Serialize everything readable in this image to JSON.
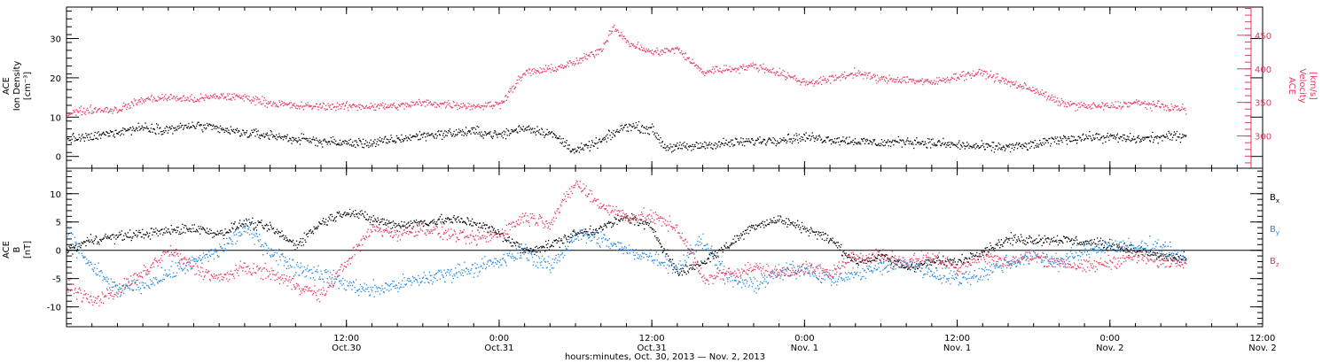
{
  "colors": {
    "axis": "#000000",
    "density": "#000000",
    "velocity": "#e8385e",
    "bx": "#000000",
    "by": "#1f87e5",
    "bz": "#e8385e"
  },
  "chart_data": [
    {
      "type": "scatter",
      "panel": "top",
      "xlim_hours": [
        -10,
        84
      ],
      "xlabel": "hours:minutes, Oct. 30, 2013 — Nov.  2, 2013",
      "left_axis": {
        "title": [
          "ACE",
          "Ion Density",
          "[cm⁻³]"
        ],
        "ylim": [
          -3,
          38
        ],
        "ticks": [
          0,
          10,
          20,
          30
        ],
        "tick_labels": [
          "0",
          "10",
          "20",
          "30"
        ]
      },
      "right_axis": {
        "title": [
          "ACE",
          "Velocity",
          "[km/s]"
        ],
        "ylim": [
          252,
          492
        ],
        "ticks": [
          300,
          350,
          400,
          450
        ],
        "tick_labels": [
          "300",
          "350",
          "400",
          "450"
        ]
      },
      "series": [
        {
          "key": "density",
          "axis": "left",
          "x": [
            -10,
            -8,
            -6,
            -4,
            -2,
            0,
            2,
            4,
            6,
            8,
            10,
            12,
            14,
            16,
            18,
            20,
            22,
            24,
            26,
            28,
            30,
            32,
            34,
            36,
            37,
            38,
            39,
            40,
            42,
            44,
            46,
            48,
            50,
            52,
            54,
            56,
            58,
            60,
            62,
            64,
            66,
            68,
            70,
            72,
            74,
            76,
            78
          ],
          "y": [
            4.5,
            5,
            6.5,
            7.5,
            7,
            8,
            7,
            6,
            5.5,
            4.5,
            4,
            3.5,
            3.5,
            4.5,
            5.5,
            6,
            6.5,
            5.5,
            7.5,
            6,
            1.5,
            4,
            8,
            7,
            2.5,
            2.5,
            2.5,
            3,
            3.5,
            4,
            4.5,
            5,
            4.5,
            4,
            3.5,
            4,
            3.5,
            3,
            2.5,
            2.5,
            3,
            4.5,
            5,
            5,
            4.5,
            5,
            5.5
          ]
        },
        {
          "key": "velocity",
          "axis": "right",
          "x": [
            -10,
            -8,
            -6,
            -4,
            -2,
            0,
            2,
            4,
            6,
            8,
            10,
            12,
            14,
            16,
            18,
            20,
            22,
            24,
            26,
            28,
            30,
            32,
            33,
            34,
            36,
            38,
            40,
            41,
            42,
            44,
            46,
            48,
            50,
            52,
            54,
            56,
            58,
            60,
            62,
            64,
            66,
            68,
            70,
            72,
            74,
            76,
            78
          ],
          "y": [
            335,
            340,
            340,
            355,
            358,
            355,
            360,
            358,
            350,
            345,
            345,
            345,
            345,
            345,
            350,
            348,
            345,
            348,
            395,
            400,
            410,
            430,
            465,
            440,
            425,
            430,
            395,
            400,
            400,
            405,
            395,
            380,
            385,
            395,
            385,
            385,
            380,
            390,
            395,
            380,
            370,
            350,
            345,
            345,
            350,
            345,
            340
          ]
        }
      ]
    },
    {
      "type": "scatter",
      "panel": "bottom",
      "xlim_hours": [
        -10,
        84
      ],
      "left_axis": {
        "title": [
          "ACE",
          "B",
          "[nT]"
        ],
        "ylim": [
          -13.5,
          14.5
        ],
        "ticks": [
          -10,
          -5,
          0,
          5,
          10
        ],
        "tick_labels": [
          "-10",
          "-5",
          "0",
          "5",
          "10"
        ]
      },
      "zero_line": true,
      "x_ticks": [
        {
          "hours": 12,
          "label": "12:00",
          "date": "Oct.30"
        },
        {
          "hours": 24,
          "label": "0:00",
          "date": "Oct.31"
        },
        {
          "hours": 36,
          "label": "12:00",
          "date": "Oct.31"
        },
        {
          "hours": 48,
          "label": "0:00",
          "date": "Nov. 1"
        },
        {
          "hours": 60,
          "label": "12:00",
          "date": "Nov. 1"
        },
        {
          "hours": 72,
          "label": "0:00",
          "date": "Nov. 2"
        },
        {
          "hours": 84,
          "label": "12:00",
          "date": "Nov. 2"
        }
      ],
      "legend": [
        "B",
        "B",
        "B"
      ],
      "legend_subscripts": [
        "x",
        "y",
        "z"
      ],
      "legend_placement": "right",
      "series": [
        {
          "key": "bx",
          "x": [
            -10,
            -8,
            -6,
            -4,
            -2,
            0,
            2,
            4,
            6,
            8,
            10,
            12,
            14,
            16,
            18,
            20,
            22,
            24,
            26,
            28,
            30,
            32,
            34,
            36,
            38,
            40,
            42,
            44,
            46,
            48,
            50,
            52,
            54,
            56,
            58,
            60,
            62,
            64,
            66,
            68,
            70,
            72,
            74,
            76,
            78
          ],
          "y": [
            0,
            2,
            2.5,
            3,
            3.5,
            4,
            3,
            5,
            4,
            1,
            5,
            7,
            5.5,
            4.5,
            5,
            5.5,
            5,
            3,
            0,
            1,
            3,
            4,
            6,
            4,
            -4,
            -2,
            1,
            4.5,
            5.5,
            4,
            2,
            -2,
            -1,
            -3,
            -2,
            -2,
            0,
            2,
            2,
            2,
            1.5,
            1,
            0,
            -1,
            -1.5
          ]
        },
        {
          "key": "by",
          "x": [
            -10,
            -8,
            -6,
            -4,
            -2,
            0,
            2,
            4,
            6,
            8,
            10,
            12,
            14,
            16,
            18,
            20,
            22,
            24,
            26,
            28,
            30,
            32,
            34,
            36,
            38,
            40,
            42,
            44,
            46,
            48,
            50,
            52,
            54,
            56,
            58,
            60,
            62,
            64,
            66,
            68,
            70,
            72,
            74,
            76,
            78
          ],
          "y": [
            3,
            -3,
            -7,
            -6,
            -4,
            -2,
            0,
            4,
            0,
            -3,
            -4,
            -6,
            -7,
            -6,
            -5,
            -4,
            -3,
            -2,
            0,
            -3,
            3,
            2,
            0,
            -1,
            -3,
            2,
            -5,
            -6,
            -4,
            -3,
            -5,
            -4,
            -3,
            -2,
            -4,
            -5,
            -4,
            -2,
            -1,
            -2,
            0,
            1,
            0.5,
            1,
            -2
          ]
        },
        {
          "key": "bz",
          "x": [
            -10,
            -8,
            -6,
            -4,
            -2,
            0,
            2,
            4,
            6,
            8,
            10,
            12,
            14,
            16,
            18,
            20,
            22,
            24,
            26,
            28,
            30,
            32,
            34,
            36,
            38,
            40,
            42,
            44,
            46,
            48,
            50,
            52,
            54,
            56,
            58,
            60,
            62,
            64,
            66,
            68,
            70,
            72,
            74,
            76,
            78
          ],
          "y": [
            -6,
            -9,
            -7,
            -4,
            0,
            -3,
            -5,
            -3,
            -4,
            -6,
            -8,
            -2,
            4,
            3,
            4,
            3,
            2,
            3,
            6,
            5,
            12,
            8,
            6,
            6,
            4,
            -5,
            -4,
            -3,
            -4,
            -3,
            -4,
            -1,
            -1,
            -2,
            -1,
            -3,
            -1,
            -2,
            -1,
            -2,
            -3,
            -2,
            -1,
            -2,
            -1.5
          ]
        }
      ]
    }
  ]
}
